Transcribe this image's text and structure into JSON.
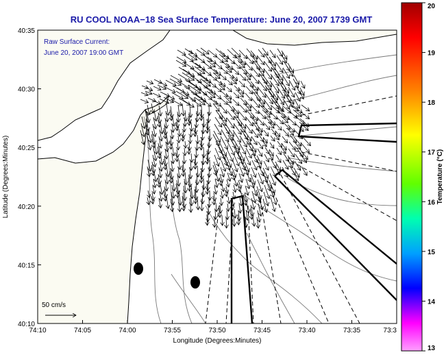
{
  "title": "RU COOL  NOAA−18  Sea Surface Temperature:  June 20, 2007 1739 GMT",
  "inset": {
    "line1": "Raw Surface Current:",
    "line2": "June 20, 2007 19:00 GMT"
  },
  "scale_label": "50 cm/s",
  "axes": {
    "xlabel": "Longitude (Degrees:Minutes)",
    "ylabel": "Latitude (Degrees:Minutes)",
    "xticks": [
      "74:10",
      "74:05",
      "74:00",
      "73:55",
      "73:50",
      "73:45",
      "73:40",
      "73:35",
      "73:3"
    ],
    "yticks": [
      "40:35",
      "40:30",
      "40:25",
      "40:20",
      "40:15",
      "40:10"
    ]
  },
  "colorbar": {
    "label": "Temperature (°C)",
    "ticks": [
      "20",
      "19",
      "18",
      "17",
      "16",
      "15",
      "14",
      "13"
    ],
    "colors": [
      "#a00000",
      "#ff0000",
      "#ff8000",
      "#ffff00",
      "#60ff00",
      "#00ffb0",
      "#00a0ff",
      "#0000ff",
      "#ff00ff",
      "#ffa0ff"
    ]
  },
  "colors": {
    "title_text": "#1a1aa8",
    "background": "#ffffff",
    "land_fill": "#fbfbf2"
  }
}
